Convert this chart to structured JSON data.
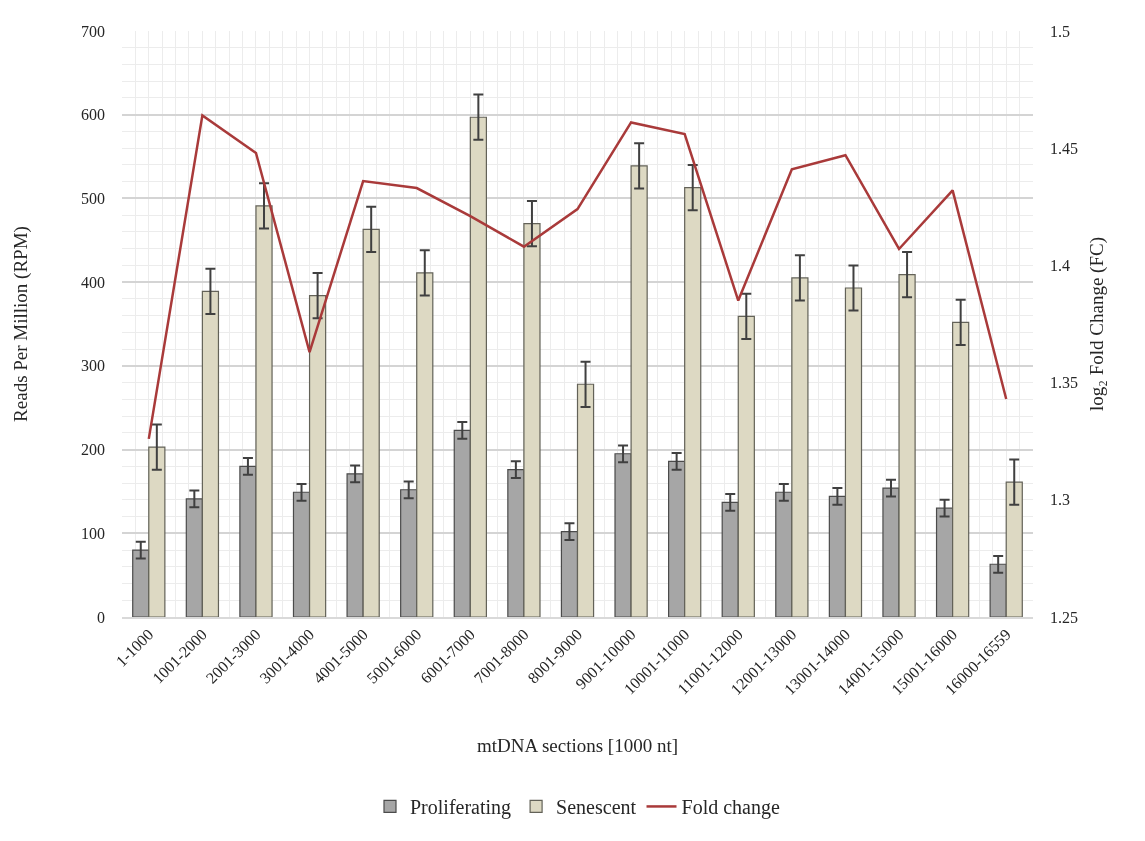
{
  "chart_data": {
    "type": "bar",
    "xlabel": "mtDNA sections [1000 nt]",
    "ylabel": "Reads Per Million (RPM)",
    "y2label": "log₂ Fold Change (FC)",
    "categories": [
      "1-1000",
      "1001-2000",
      "2001-3000",
      "3001-4000",
      "4001-5000",
      "5001-6000",
      "6001-7000",
      "7001-8000",
      "8001-9000",
      "9001-10000",
      "10001-11000",
      "11001-12000",
      "12001-13000",
      "13001-14000",
      "14001-15000",
      "15001-16000",
      "16000-16559"
    ],
    "series": [
      {
        "name": "Proliferating",
        "color": "#a6a6a6",
        "values": [
          80,
          141,
          180,
          149,
          171,
          152,
          223,
          176,
          102,
          195,
          186,
          137,
          149,
          144,
          154,
          130,
          63
        ],
        "errors": [
          10,
          10,
          10,
          10,
          10,
          10,
          10,
          10,
          10,
          10,
          10,
          10,
          10,
          10,
          10,
          10,
          10
        ]
      },
      {
        "name": "Senescent",
        "color": "#ddd9c3",
        "values": [
          203,
          389,
          491,
          384,
          463,
          411,
          597,
          470,
          278,
          539,
          513,
          359,
          405,
          393,
          409,
          352,
          161
        ],
        "errors": [
          27,
          27,
          27,
          27,
          27,
          27,
          27,
          27,
          27,
          27,
          27,
          27,
          27,
          27,
          27,
          27,
          27
        ]
      },
      {
        "name": "Fold change",
        "type": "line",
        "axis": "y2",
        "color": "#a93a3a",
        "values": [
          1.326,
          1.464,
          1.448,
          1.363,
          1.436,
          1.433,
          1.421,
          1.408,
          1.424,
          1.461,
          1.456,
          1.385,
          1.441,
          1.447,
          1.407,
          1.432,
          1.343
        ]
      }
    ],
    "ylim": [
      0,
      700
    ],
    "yticks": [
      0,
      100,
      200,
      300,
      400,
      500,
      600,
      700
    ],
    "y2lim": [
      1.25,
      1.5
    ],
    "y2ticks": [
      1.25,
      1.3,
      1.35,
      1.4,
      1.45,
      1.5
    ],
    "grid": true,
    "legend": "bottom",
    "line_style": "solid",
    "marker": "none"
  }
}
